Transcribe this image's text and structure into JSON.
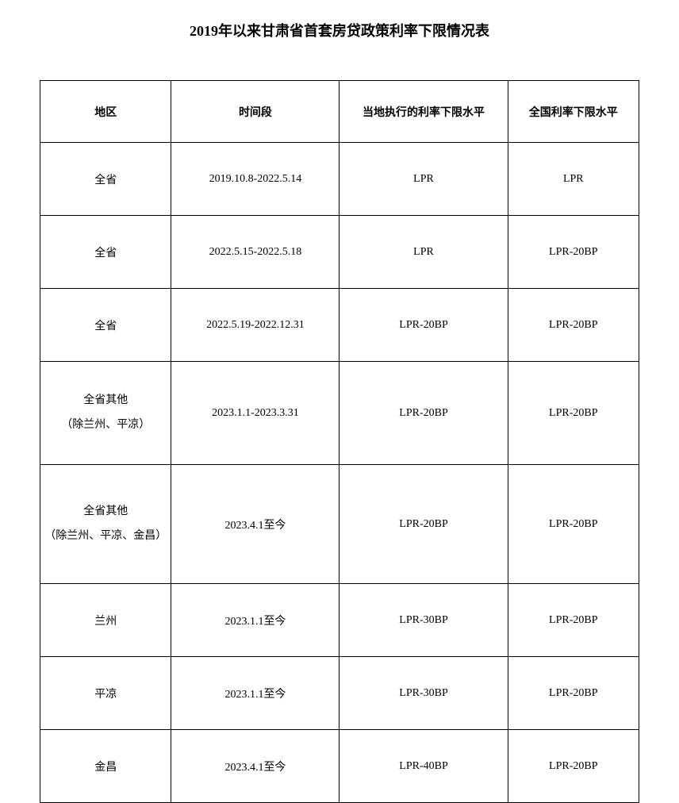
{
  "title": "2019年以来甘肃省首套房贷政策利率下限情况表",
  "table": {
    "headers": {
      "region": "地区",
      "period": "时间段",
      "local_rate": "当地执行的利率下限水平",
      "national_rate": "全国利率下限水平"
    },
    "rows": [
      {
        "region": "全省",
        "period": "2019.10.8-2022.5.14",
        "local_rate": "LPR",
        "national_rate": "LPR",
        "row_class": "row-normal"
      },
      {
        "region": "全省",
        "period": "2022.5.15-2022.5.18",
        "local_rate": "LPR",
        "national_rate": "LPR-20BP",
        "row_class": "row-normal"
      },
      {
        "region": "全省",
        "period": "2022.5.19-2022.12.31",
        "local_rate": "LPR-20BP",
        "national_rate": "LPR-20BP",
        "row_class": "row-normal"
      },
      {
        "region_line1": "全省其他",
        "region_line2": "（除兰州、平凉）",
        "period": "2023.1.1-2023.3.31",
        "local_rate": "LPR-20BP",
        "national_rate": "LPR-20BP",
        "row_class": "row-tall",
        "multiline": true
      },
      {
        "region_line1": "全省其他",
        "region_line2": "（除兰州、平凉、金昌）",
        "period": "2023.4.1至今",
        "local_rate": "LPR-20BP",
        "national_rate": "LPR-20BP",
        "row_class": "row-taller",
        "multiline": true
      },
      {
        "region": "兰州",
        "period": "2023.1.1至今",
        "local_rate": "LPR-30BP",
        "national_rate": "LPR-20BP",
        "row_class": "row-normal"
      },
      {
        "region": "平凉",
        "period": "2023.1.1至今",
        "local_rate": "LPR-30BP",
        "national_rate": "LPR-20BP",
        "row_class": "row-normal"
      },
      {
        "region": "金昌",
        "period": "2023.4.1至今",
        "local_rate": "LPR-40BP",
        "national_rate": "LPR-20BP",
        "row_class": "row-normal"
      }
    ]
  },
  "styling": {
    "background_color": "#ffffff",
    "text_color": "#000000",
    "border_color": "#000000",
    "title_fontsize": 18,
    "cell_fontsize": 14,
    "font_family": "SimSun"
  }
}
